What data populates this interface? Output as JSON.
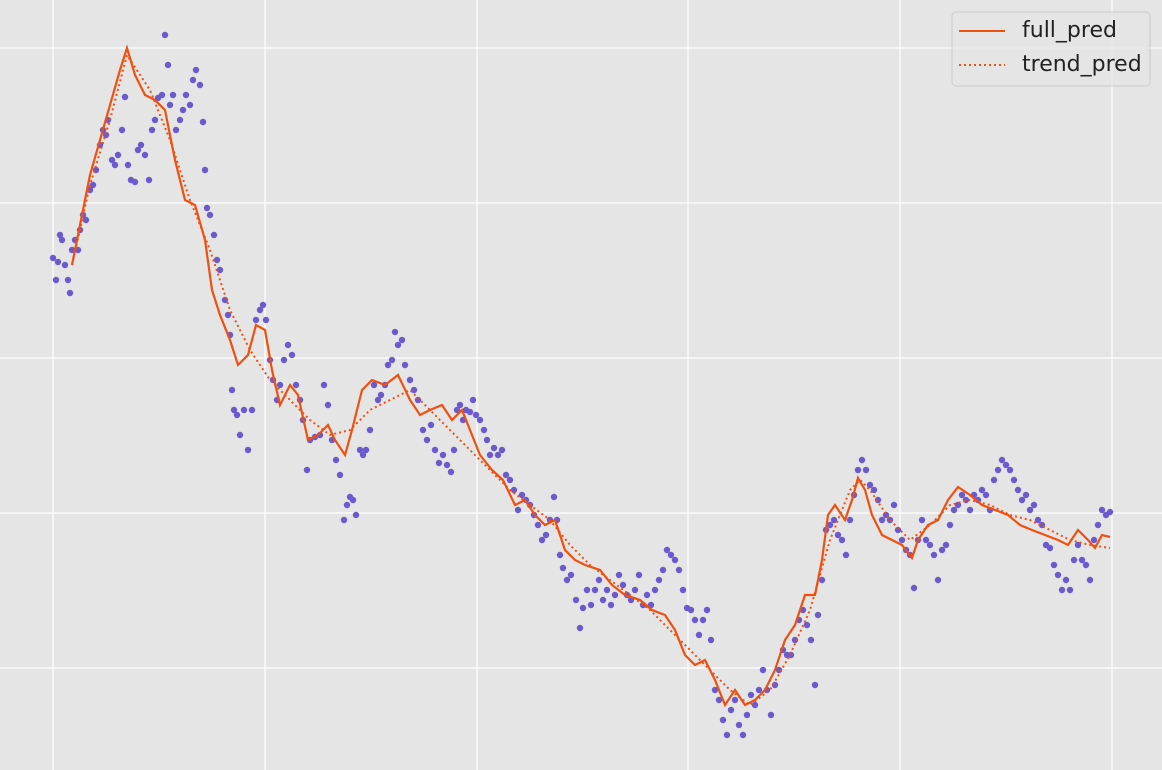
{
  "chart_data": {
    "type": "line",
    "xlim": [
      0,
      1162
    ],
    "ylim": [
      0,
      770
    ],
    "xticks": [
      53,
      265,
      477,
      688,
      900,
      1112
    ],
    "yticks": [
      102,
      257,
      412,
      567,
      722
    ],
    "grid": true,
    "legend": "upper right",
    "points": {
      "color": "#6a5acd",
      "x": [
        53,
        56,
        58,
        60,
        62,
        65,
        68,
        70,
        72,
        75,
        78,
        80,
        83,
        86,
        90,
        93,
        96,
        100,
        103,
        106,
        108,
        112,
        115,
        118,
        122,
        125,
        128,
        131,
        135,
        138,
        141,
        145,
        149,
        152,
        155,
        158,
        162,
        165,
        168,
        170,
        173,
        176,
        180,
        183,
        186,
        190,
        193,
        196,
        200,
        203,
        205,
        207,
        210,
        214,
        217,
        220,
        225,
        228,
        230,
        232,
        234,
        237,
        240,
        244,
        248,
        252,
        256,
        260,
        263,
        266,
        270,
        273,
        277,
        280,
        284,
        288,
        292,
        296,
        300,
        303,
        307,
        310,
        315,
        320,
        324,
        328,
        332,
        336,
        340,
        344,
        347,
        350,
        353,
        356,
        360,
        363,
        366,
        370,
        374,
        378,
        381,
        385,
        388,
        392,
        395,
        398,
        402,
        405,
        410,
        414,
        418,
        423,
        427,
        431,
        435,
        439,
        443,
        447,
        451,
        454,
        457,
        460,
        463,
        466,
        470,
        473,
        476,
        480,
        484,
        487,
        490,
        494,
        498,
        502,
        506,
        510,
        514,
        518,
        522,
        526,
        530,
        534,
        538,
        542,
        546,
        550,
        554,
        557,
        560,
        563,
        567,
        571,
        576,
        580,
        583,
        587,
        591,
        595,
        599,
        603,
        607,
        611,
        615,
        619,
        623,
        627,
        631,
        635,
        639,
        643,
        647,
        651,
        655,
        659,
        663,
        667,
        671,
        675,
        679,
        683,
        687,
        691,
        695,
        699,
        703,
        707,
        711,
        715,
        719,
        723,
        727,
        731,
        735,
        739,
        743,
        747,
        751,
        755,
        759,
        763,
        767,
        771,
        775,
        779,
        783,
        787,
        791,
        795,
        799,
        803,
        807,
        811,
        815,
        818,
        822,
        826,
        830,
        834,
        838,
        842,
        846,
        850,
        854,
        858,
        862,
        866,
        870,
        874,
        878,
        882,
        886,
        890,
        894,
        898,
        902,
        906,
        910,
        914,
        918,
        922,
        926,
        930,
        934,
        938,
        942,
        946,
        950,
        954,
        958,
        962,
        966,
        970,
        974,
        978,
        982,
        986,
        990,
        994,
        998,
        1002,
        1006,
        1010,
        1014,
        1018,
        1022,
        1026,
        1030,
        1034,
        1038,
        1042,
        1046,
        1050,
        1054,
        1058,
        1062,
        1066,
        1070,
        1074,
        1078,
        1082,
        1086,
        1090,
        1094,
        1098,
        1102,
        1106,
        1110
      ],
      "values": [
        512,
        490,
        508,
        535,
        530,
        505,
        490,
        477,
        520,
        530,
        520,
        540,
        555,
        550,
        580,
        585,
        600,
        625,
        640,
        635,
        650,
        610,
        605,
        615,
        640,
        673,
        605,
        590,
        588,
        620,
        625,
        615,
        590,
        640,
        650,
        672,
        675,
        735,
        705,
        665,
        675,
        640,
        650,
        660,
        675,
        665,
        690,
        700,
        685,
        648,
        600,
        562,
        555,
        535,
        510,
        500,
        470,
        455,
        435,
        380,
        360,
        355,
        335,
        360,
        320,
        360,
        450,
        460,
        465,
        450,
        410,
        390,
        370,
        385,
        410,
        425,
        415,
        385,
        370,
        350,
        300,
        330,
        333,
        335,
        385,
        365,
        330,
        310,
        295,
        250,
        265,
        273,
        270,
        255,
        320,
        315,
        320,
        340,
        385,
        370,
        375,
        385,
        405,
        410,
        438,
        425,
        430,
        405,
        390,
        380,
        370,
        340,
        330,
        345,
        320,
        307,
        315,
        305,
        298,
        320,
        360,
        365,
        350,
        360,
        358,
        370,
        355,
        350,
        340,
        330,
        315,
        322,
        315,
        320,
        295,
        290,
        280,
        260,
        275,
        270,
        265,
        255,
        245,
        230,
        235,
        250,
        273,
        250,
        215,
        202,
        190,
        195,
        170,
        142,
        162,
        180,
        165,
        180,
        190,
        170,
        180,
        165,
        175,
        195,
        185,
        175,
        170,
        180,
        195,
        165,
        175,
        165,
        180,
        190,
        200,
        220,
        215,
        210,
        200,
        180,
        162,
        160,
        150,
        135,
        150,
        160,
        130,
        80,
        70,
        50,
        35,
        60,
        70,
        45,
        35,
        55,
        75,
        65,
        80,
        100,
        80,
        55,
        85,
        100,
        120,
        115,
        115,
        130,
        150,
        160,
        145,
        130,
        85,
        155,
        190,
        240,
        245,
        250,
        235,
        230,
        215,
        250,
        275,
        300,
        310,
        300,
        285,
        280,
        270,
        250,
        255,
        250,
        265,
        240,
        230,
        220,
        215,
        182,
        230,
        250,
        230,
        225,
        215,
        190,
        220,
        225,
        245,
        260,
        265,
        275,
        270,
        260,
        275,
        270,
        280,
        275,
        260,
        290,
        300,
        310,
        305,
        300,
        290,
        280,
        270,
        275,
        260,
        265,
        250,
        245,
        225,
        222,
        205,
        195,
        180,
        190,
        180,
        210,
        225,
        210,
        205,
        190,
        230,
        245,
        260,
        255,
        258
      ]
    },
    "series": [
      {
        "name": "full_pred",
        "color": "#f0500f",
        "style": "solid",
        "x": [
          72,
          80,
          90,
          100,
          110,
          120,
          127,
          135,
          145,
          155,
          165,
          175,
          185,
          195,
          205,
          212,
          220,
          230,
          238,
          248,
          256,
          265,
          272,
          280,
          290,
          298,
          308,
          318,
          328,
          335,
          345,
          352,
          362,
          372,
          385,
          398,
          410,
          420,
          430,
          442,
          452,
          462,
          472,
          480,
          492,
          503,
          515,
          525,
          535,
          545,
          555,
          565,
          575,
          585,
          600,
          612,
          625,
          640,
          652,
          665,
          675,
          685,
          695,
          705,
          715,
          725,
          735,
          745,
          755,
          765,
          775,
          785,
          795,
          805,
          815,
          822,
          828,
          835,
          845,
          852,
          858,
          865,
          872,
          882,
          892,
          902,
          912,
          918,
          928,
          938,
          948,
          958,
          970,
          982,
          995,
          1008,
          1020,
          1032,
          1045,
          1058,
          1068,
          1078,
          1088,
          1095,
          1102,
          1110
        ],
        "values": [
          505,
          545,
          595,
          630,
          665,
          700,
          722,
          695,
          675,
          670,
          660,
          610,
          570,
          565,
          530,
          480,
          455,
          430,
          405,
          415,
          445,
          440,
          400,
          365,
          385,
          375,
          330,
          335,
          345,
          330,
          315,
          340,
          380,
          390,
          385,
          395,
          370,
          355,
          360,
          365,
          350,
          360,
          335,
          315,
          300,
          290,
          265,
          270,
          255,
          245,
          250,
          220,
          210,
          205,
          200,
          185,
          175,
          170,
          160,
          155,
          140,
          115,
          105,
          110,
          90,
          65,
          80,
          65,
          70,
          80,
          100,
          130,
          145,
          175,
          175,
          210,
          255,
          265,
          250,
          270,
          292,
          280,
          255,
          235,
          230,
          225,
          212,
          230,
          245,
          250,
          270,
          283,
          275,
          265,
          260,
          255,
          245,
          240,
          235,
          230,
          225,
          240,
          230,
          222,
          235,
          233
        ]
      },
      {
        "name": "trend_pred",
        "color": "#f0500f",
        "style": "dotted",
        "x": [
          72,
          90,
          110,
          127,
          150,
          170,
          190,
          210,
          230,
          250,
          270,
          290,
          310,
          330,
          350,
          370,
          390,
          410,
          430,
          450,
          470,
          490,
          510,
          530,
          550,
          570,
          590,
          610,
          630,
          650,
          670,
          690,
          710,
          730,
          750,
          770,
          790,
          810,
          830,
          850,
          860,
          870,
          890,
          910,
          930,
          950,
          970,
          990,
          1010,
          1030,
          1050,
          1070,
          1090,
          1110
        ],
        "values": [
          505,
          585,
          650,
          715,
          680,
          630,
          570,
          520,
          460,
          420,
          390,
          370,
          350,
          335,
          340,
          360,
          370,
          380,
          360,
          340,
          320,
          300,
          280,
          265,
          250,
          225,
          205,
          190,
          175,
          160,
          140,
          120,
          100,
          80,
          65,
          80,
          115,
          160,
          230,
          280,
          290,
          280,
          250,
          230,
          245,
          265,
          270,
          265,
          255,
          250,
          240,
          230,
          225,
          222
        ]
      }
    ]
  }
}
